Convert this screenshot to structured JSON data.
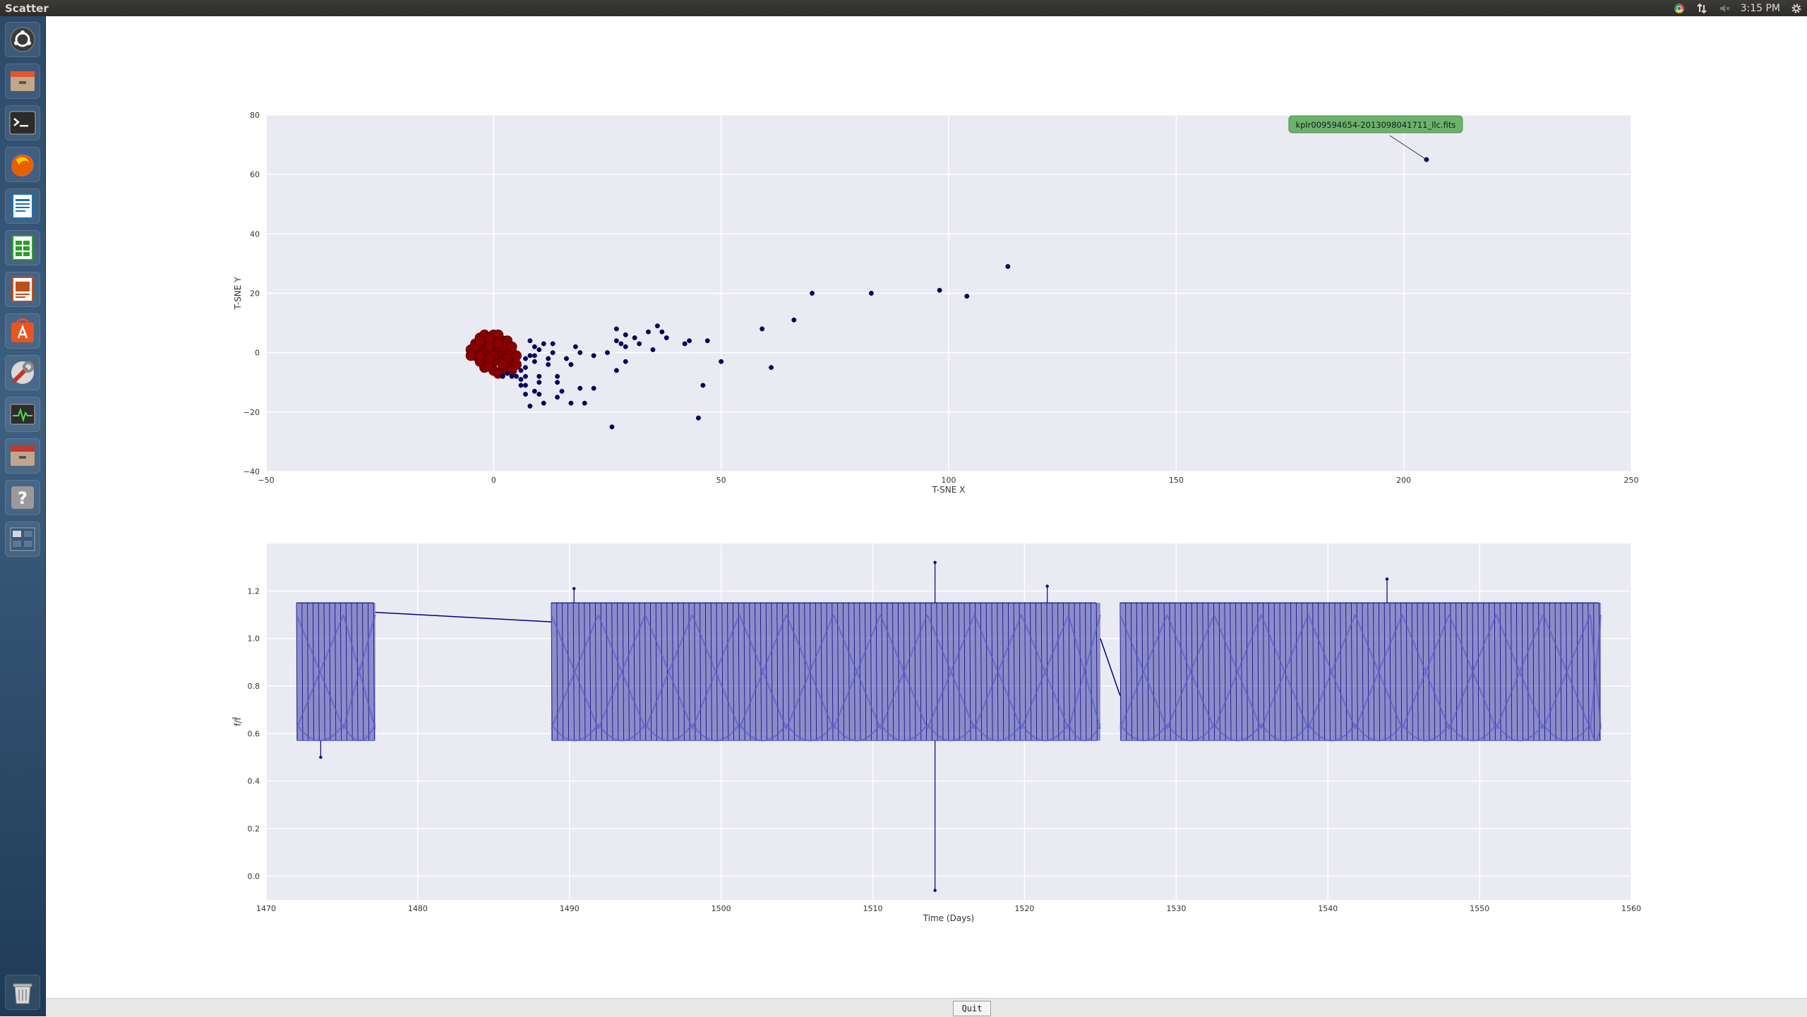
{
  "window": {
    "title": "Scatter"
  },
  "panel": {
    "clock": "3:15 PM"
  },
  "launcher": {
    "items": [
      "dash-icon",
      "files-icon",
      "terminal-icon",
      "firefox-icon",
      "writer-icon",
      "calc-icon",
      "impress-icon",
      "software-center-icon",
      "system-settings-icon",
      "system-monitor-icon",
      "files-icon",
      "help-icon",
      "workspace-switcher-icon",
      "trash-icon"
    ]
  },
  "buttons": {
    "quit": "Quit"
  },
  "colors": {
    "plot_bg": "#eaeaf2",
    "navy": "#000066",
    "dark_red": "#8b0000",
    "light_blue": "#3838a8",
    "tooltip_bg": "#6cb26c"
  },
  "chart_data": [
    {
      "type": "scatter",
      "xlabel": "T-SNE X",
      "ylabel": "T-SNE Y",
      "xlim": [
        -50,
        250
      ],
      "ylim": [
        -40,
        80
      ],
      "xticks": [
        "−50",
        "0",
        "50",
        "100",
        "150",
        "200",
        "250"
      ],
      "yticks": [
        "−40",
        "−20",
        "0",
        "20",
        "40",
        "60",
        "80"
      ],
      "annotation": {
        "text": "kplr009594654-2013098041711_llc.fits",
        "point": [
          205,
          65
        ]
      },
      "series": [
        {
          "color": "#000066",
          "points": [
            [
              205,
              65
            ],
            [
              113,
              29
            ],
            [
              98,
              21
            ],
            [
              104,
              19
            ],
            [
              83,
              20
            ],
            [
              70,
              20
            ],
            [
              66,
              11
            ],
            [
              59,
              8
            ],
            [
              61,
              -5
            ],
            [
              46,
              -11
            ],
            [
              45,
              -22
            ],
            [
              50,
              -3
            ],
            [
              47,
              4
            ],
            [
              43,
              4
            ],
            [
              42,
              3
            ],
            [
              37,
              7
            ],
            [
              38,
              5
            ],
            [
              36,
              9
            ],
            [
              34,
              7
            ],
            [
              35,
              1
            ],
            [
              32,
              3
            ],
            [
              31,
              5
            ],
            [
              29,
              2
            ],
            [
              29,
              6
            ],
            [
              28,
              3
            ],
            [
              27,
              8
            ],
            [
              27,
              4
            ],
            [
              27,
              -6
            ],
            [
              29,
              -3
            ],
            [
              26,
              -25
            ],
            [
              25,
              0
            ],
            [
              22,
              -1
            ],
            [
              22,
              -12
            ],
            [
              20,
              -17
            ],
            [
              19,
              -12
            ],
            [
              19,
              0
            ],
            [
              18,
              2
            ],
            [
              17,
              -4
            ],
            [
              16,
              -2
            ],
            [
              17,
              -17
            ],
            [
              15,
              -13
            ],
            [
              14,
              -10
            ],
            [
              14,
              -8
            ],
            [
              14,
              -15
            ],
            [
              13,
              0
            ],
            [
              13,
              3
            ],
            [
              12,
              -4
            ],
            [
              12,
              -2
            ],
            [
              11,
              -17
            ],
            [
              11,
              3
            ],
            [
              10,
              -14
            ],
            [
              10,
              -10
            ],
            [
              10,
              -8
            ],
            [
              9,
              -3
            ],
            [
              9,
              -13
            ],
            [
              9,
              2
            ],
            [
              8,
              -18
            ],
            [
              8,
              4
            ],
            [
              7,
              -5
            ],
            [
              7,
              -11
            ],
            [
              7,
              -14
            ],
            [
              7,
              -8
            ],
            [
              7,
              -2
            ],
            [
              6,
              -9
            ],
            [
              6,
              -6
            ],
            [
              6,
              -11
            ],
            [
              5,
              -8
            ],
            [
              4,
              -8
            ],
            [
              3,
              -7
            ],
            [
              2,
              -8
            ],
            [
              8,
              -1
            ],
            [
              9,
              -1
            ],
            [
              10,
              1
            ]
          ]
        },
        {
          "color": "#8b0000",
          "points": [
            [
              -5,
              1
            ],
            [
              -4,
              3
            ],
            [
              -3,
              5
            ],
            [
              -2,
              6
            ],
            [
              0,
              6
            ],
            [
              1,
              5
            ],
            [
              2,
              4
            ],
            [
              3,
              2
            ],
            [
              4,
              0
            ],
            [
              4,
              -3
            ],
            [
              3,
              -5
            ],
            [
              2,
              -6
            ],
            [
              0,
              -6
            ],
            [
              -2,
              -5
            ],
            [
              -3,
              -3
            ],
            [
              -4,
              -1
            ],
            [
              -5,
              -1
            ],
            [
              -1,
              0
            ],
            [
              0,
              1
            ],
            [
              1,
              -1
            ],
            [
              2,
              0
            ],
            [
              1,
              2
            ],
            [
              -1,
              3
            ],
            [
              -2,
              2
            ],
            [
              -3,
              1
            ],
            [
              -2,
              -2
            ],
            [
              0,
              -3
            ],
            [
              2,
              -3
            ],
            [
              3,
              0
            ],
            [
              0,
              4
            ],
            [
              -4,
              2
            ],
            [
              -3,
              4
            ],
            [
              -1,
              5
            ],
            [
              1,
              6
            ],
            [
              3,
              4
            ],
            [
              5,
              -1
            ],
            [
              5,
              -4
            ],
            [
              4,
              -6
            ],
            [
              1,
              -7
            ],
            [
              -1,
              -4
            ],
            [
              -2,
              0
            ],
            [
              0,
              -1
            ],
            [
              2,
              2
            ],
            [
              -1,
              -2
            ],
            [
              1,
              3
            ],
            [
              3,
              -2
            ],
            [
              -3,
              -1
            ],
            [
              -1,
              2
            ],
            [
              2,
              -4
            ],
            [
              4,
              2
            ]
          ]
        }
      ]
    },
    {
      "type": "line",
      "xlabel": "Time (Days)",
      "ylabel": "f/f̄",
      "xlim": [
        1470,
        1560
      ],
      "ylim": [
        -0.1,
        1.4
      ],
      "xticks": [
        "1470",
        "1480",
        "1490",
        "1500",
        "1510",
        "1520",
        "1530",
        "1540",
        "1550",
        "1560"
      ],
      "yticks": [
        "0.0",
        "0.2",
        "0.4",
        "0.6",
        "0.8",
        "1.0",
        "1.2"
      ],
      "segments": [
        [
          1472,
          1477.2
        ],
        [
          1488.8,
          1525
        ],
        [
          1526.3,
          1558
        ]
      ],
      "period_days": 0.363,
      "flux_max": 1.15,
      "flux_min": 0.57,
      "gap_lines": [
        [
          1477.2,
          1.11,
          1488.8,
          1.07
        ],
        [
          1525,
          1.0,
          1526.3,
          0.76
        ]
      ],
      "spikes": [
        [
          1514.1,
          -0.06
        ],
        [
          1514.1,
          1.32
        ],
        [
          1473.6,
          0.5
        ],
        [
          1543.9,
          1.25
        ],
        [
          1521.5,
          1.22
        ],
        [
          1490.3,
          1.21
        ]
      ],
      "color": "#000080"
    }
  ]
}
